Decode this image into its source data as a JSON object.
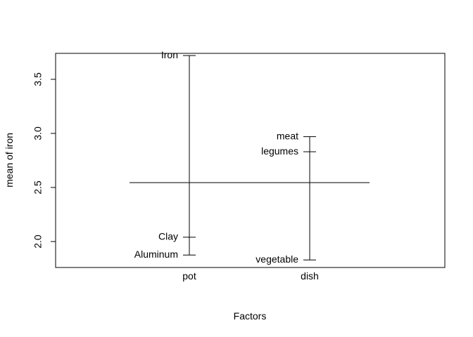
{
  "chart_data": {
    "type": "design_plot",
    "xlabel": "Factors",
    "ylabel": "mean of iron",
    "ylim": [
      1.76,
      3.74
    ],
    "y_ticks": [
      "2.0",
      "2.5",
      "3.0",
      "3.5"
    ],
    "grand_mean": 2.545,
    "factors": [
      {
        "name": "pot",
        "levels": [
          {
            "label": "Iron",
            "value": 3.72
          },
          {
            "label": "Clay",
            "value": 2.04
          },
          {
            "label": "Aluminum",
            "value": 1.875
          }
        ]
      },
      {
        "name": "dish",
        "levels": [
          {
            "label": "meat",
            "value": 2.97
          },
          {
            "label": "legumes",
            "value": 2.83
          },
          {
            "label": "vegetable",
            "value": 1.83
          }
        ]
      }
    ]
  }
}
